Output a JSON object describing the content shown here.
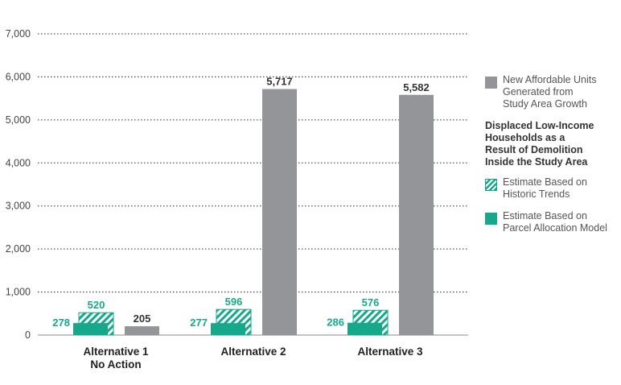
{
  "chart_data": {
    "type": "bar",
    "categories": [
      [
        "Alternative 1",
        "No Action"
      ],
      [
        "Alternative 2"
      ],
      [
        "Alternative 3"
      ]
    ],
    "yticks": [
      "7,000",
      "6,000",
      "5,000",
      "4,000",
      "3,000",
      "2,000",
      "1,000",
      "0"
    ],
    "ylim": [
      0,
      7000
    ],
    "grid": "dotted horizontal",
    "legend_position": "right",
    "series": [
      {
        "key": "parcel",
        "values": [
          278,
          277,
          286
        ],
        "labels": [
          "278",
          "277",
          "286"
        ],
        "color": "#16a88a",
        "style": "solid"
      },
      {
        "key": "historic",
        "values": [
          520,
          596,
          576
        ],
        "labels": [
          "520",
          "596",
          "576"
        ],
        "color": "#16a88a",
        "style": "hatched"
      },
      {
        "key": "affordable",
        "values": [
          205,
          5717,
          5582
        ],
        "labels": [
          "205",
          "5,717",
          "5,582"
        ],
        "color": "#939598",
        "style": "solid"
      }
    ],
    "legend": {
      "affordable": "New Affordable Units\nGenerated from\nStudy Area Growth",
      "heading": "Displaced Low-Income\nHouseholds as a\nResult of Demolition\nInside the Study Area",
      "historic": "Estimate Based on\nHistoric Trends",
      "parcel": "Estimate Based on\nParcel Allocation Model"
    },
    "colors": {
      "teal": "#16a88a",
      "gray": "#939598",
      "label_dark": "#333333",
      "gridline": "#555555"
    }
  }
}
